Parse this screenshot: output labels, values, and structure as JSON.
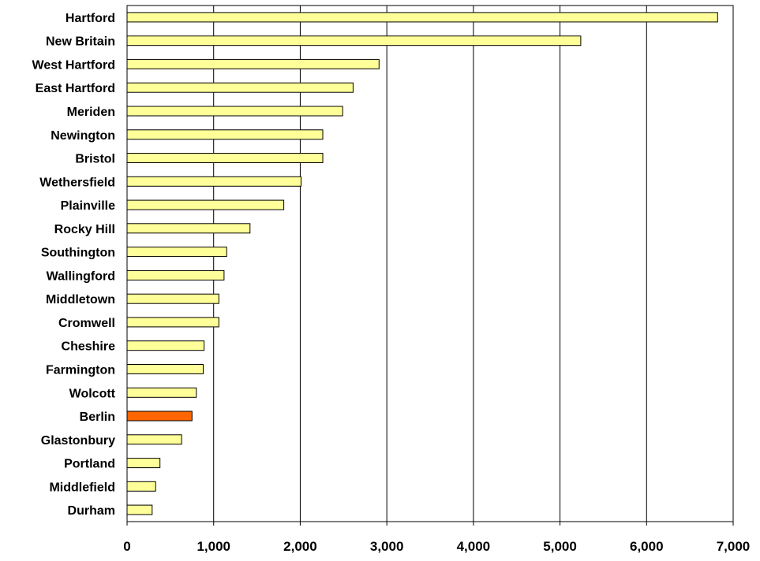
{
  "chart_data": {
    "type": "bar",
    "orientation": "horizontal",
    "categories": [
      "Hartford",
      "New Britain",
      "West Hartford",
      "East Hartford",
      "Meriden",
      "Newington",
      "Bristol",
      "Wethersfield",
      "Plainville",
      "Rocky Hill",
      "Southington",
      "Wallingford",
      "Middletown",
      "Cromwell",
      "Cheshire",
      "Farmington",
      "Wolcott",
      "Berlin",
      "Glastonbury",
      "Portland",
      "Middlefield",
      "Durham"
    ],
    "values": [
      6820,
      5240,
      2910,
      2610,
      2490,
      2260,
      2260,
      2010,
      1810,
      1420,
      1150,
      1120,
      1060,
      1060,
      890,
      880,
      800,
      750,
      630,
      380,
      330,
      290
    ],
    "highlight": "Berlin",
    "bar_color": "#FFFF99",
    "highlight_color": "#FF6600",
    "xlim": [
      0,
      7000
    ],
    "xticks": [
      0,
      1000,
      2000,
      3000,
      4000,
      5000,
      6000,
      7000
    ],
    "xtick_labels": [
      "0",
      "1,000",
      "2,000",
      "3,000",
      "4,000",
      "5,000",
      "6,000",
      "7,000"
    ],
    "grid": "vertical",
    "title": "",
    "xlabel": "",
    "ylabel": ""
  }
}
